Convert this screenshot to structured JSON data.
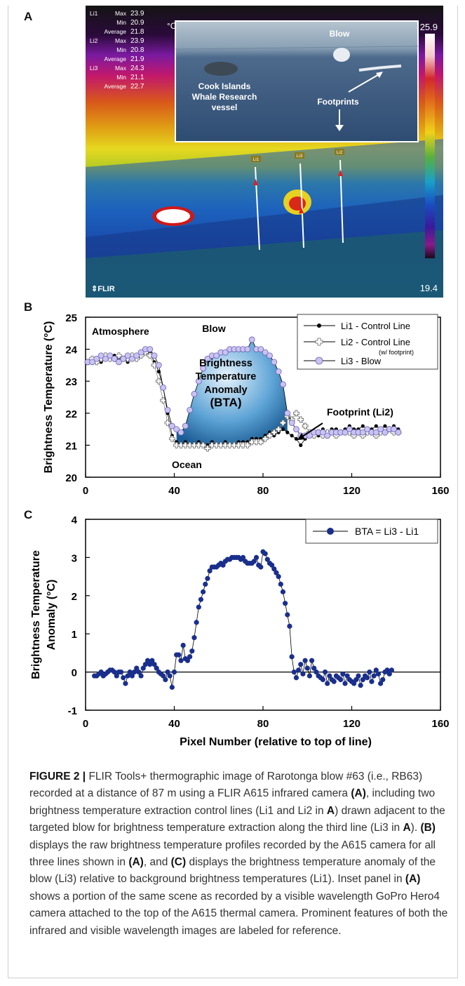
{
  "panel_a": {
    "letter": "A",
    "readouts": [
      {
        "line": "Li1",
        "max_label": "Max",
        "max": "23.9",
        "min_label": "Min",
        "min": "20.9",
        "avg_label": "Average",
        "avg": "21.8"
      },
      {
        "line": "Li2",
        "max_label": "Max",
        "max": "23.9",
        "min_label": "Min",
        "min": "20.8",
        "avg_label": "Average",
        "avg": "21.9"
      },
      {
        "line": "Li3",
        "max_label": "Max",
        "max": "24.3",
        "min_label": "Min",
        "min": "21.1",
        "avg_label": "Average",
        "avg": "22.7"
      }
    ],
    "unit": "°C",
    "scale_max": "25.9",
    "scale_min": "19.4",
    "logo": "FLIR",
    "inset": {
      "blow": "Blow",
      "vessel": [
        "Cook Islands",
        "Whale Research",
        "vessel"
      ],
      "footprints": "Footprints"
    },
    "line_tags": [
      "Li1",
      "Li3",
      "Li2"
    ],
    "colors": {
      "sky_top": "#1a1a1a",
      "warm_band": "#e8d21a",
      "water": "#1a73c9",
      "hot": "#ffffff"
    }
  },
  "chart_data": [
    {
      "type": "scatter",
      "panel": "B",
      "ylabel": "Brightness Temperature (°C)",
      "xlim": [
        0,
        160
      ],
      "ylim": [
        20,
        25
      ],
      "xticks": [
        "0",
        "40",
        "80",
        "120",
        "160"
      ],
      "yticks": [
        "20",
        "21",
        "22",
        "23",
        "24",
        "25"
      ],
      "annotations": {
        "atmosphere": "Atmosphere",
        "ocean": "Ocean",
        "blow": "Blow",
        "bta": [
          "Brightness",
          "Temperature",
          "Anomaly",
          "(BTA)"
        ],
        "footprint": "Footprint (Li2)"
      },
      "legend_placement": "top-right",
      "series": [
        {
          "name": "Li1 - Control Line",
          "marker": "filled-circle",
          "color": "#000000",
          "x": [
            1,
            3,
            5,
            7,
            9,
            11,
            13,
            15,
            17,
            19,
            21,
            23,
            25,
            27,
            29,
            31,
            33,
            35,
            37,
            39,
            41,
            43,
            45,
            47,
            49,
            51,
            53,
            55,
            57,
            59,
            61,
            63,
            65,
            67,
            69,
            71,
            73,
            75,
            77,
            79,
            81,
            83,
            85,
            87,
            89,
            91,
            93,
            95,
            97,
            99,
            101,
            103,
            105,
            107,
            109,
            111,
            113,
            115,
            117,
            119,
            121,
            123,
            125,
            127,
            129,
            131,
            133,
            135,
            137,
            139,
            141
          ],
          "y": [
            23.6,
            23.7,
            23.7,
            23.6,
            23.7,
            23.7,
            23.8,
            23.7,
            23.7,
            23.6,
            23.8,
            23.8,
            23.8,
            23.9,
            23.9,
            23.6,
            23.3,
            22.8,
            22.0,
            21.3,
            21.1,
            21.0,
            21.1,
            21.0,
            21.0,
            21.1,
            21.0,
            21.0,
            21.1,
            21.0,
            21.0,
            21.1,
            21.0,
            21.0,
            21.1,
            21.1,
            21.1,
            21.2,
            21.2,
            21.2,
            21.3,
            21.4,
            21.3,
            21.4,
            21.5,
            21.4,
            21.3,
            21.2,
            21.0,
            21.2,
            21.3,
            21.4,
            21.3,
            21.5,
            21.4,
            21.5,
            21.5,
            21.4,
            21.5,
            21.6,
            21.5,
            21.5,
            21.6,
            21.5,
            21.5,
            21.6,
            21.5,
            21.6,
            21.5,
            21.6,
            21.5
          ]
        },
        {
          "name": "Li2 - Control Line",
          "name_note": "(w/ footprint)",
          "marker": "open-cross",
          "color": "#555555",
          "x": [
            1,
            3,
            5,
            7,
            9,
            11,
            13,
            15,
            17,
            19,
            21,
            23,
            25,
            27,
            29,
            31,
            33,
            35,
            37,
            39,
            41,
            43,
            45,
            47,
            49,
            51,
            53,
            55,
            57,
            59,
            61,
            63,
            65,
            67,
            69,
            71,
            73,
            75,
            77,
            79,
            81,
            83,
            85,
            87,
            89,
            91,
            93,
            95,
            97,
            99,
            101,
            103,
            105,
            107,
            109,
            111,
            113,
            115,
            117,
            119,
            121,
            123,
            125,
            127,
            129,
            131,
            133,
            135,
            137,
            139,
            141
          ],
          "y": [
            23.6,
            23.7,
            23.6,
            23.7,
            23.8,
            23.7,
            23.7,
            23.8,
            23.7,
            23.7,
            23.8,
            23.7,
            23.8,
            23.9,
            23.8,
            23.5,
            23.0,
            22.4,
            21.7,
            21.2,
            21.0,
            21.0,
            21.0,
            21.0,
            21.0,
            21.0,
            21.0,
            20.9,
            21.0,
            21.0,
            21.0,
            21.0,
            21.0,
            21.0,
            21.0,
            21.0,
            21.0,
            21.1,
            21.1,
            21.1,
            21.2,
            21.3,
            21.4,
            21.5,
            21.7,
            21.9,
            21.8,
            22.0,
            21.8,
            21.6,
            21.4,
            21.3,
            21.4,
            21.3,
            21.4,
            21.4,
            21.3,
            21.4,
            21.4,
            21.4,
            21.3,
            21.4,
            21.3,
            21.4,
            21.4,
            21.3,
            21.4,
            21.4,
            21.5,
            21.4,
            21.4
          ]
        },
        {
          "name": "Li3 - Blow",
          "marker": "lavender-circle",
          "color": "#b9b2e6",
          "x": [
            1,
            3,
            5,
            7,
            9,
            11,
            13,
            15,
            17,
            19,
            21,
            23,
            25,
            27,
            29,
            31,
            33,
            35,
            37,
            39,
            41,
            43,
            45,
            47,
            49,
            51,
            53,
            55,
            57,
            59,
            61,
            63,
            65,
            67,
            69,
            71,
            73,
            75,
            77,
            79,
            81,
            83,
            85,
            87,
            89,
            91,
            93,
            95,
            97,
            99,
            101,
            103,
            105,
            107,
            109,
            111,
            113,
            115,
            117,
            119,
            121,
            123,
            125,
            127,
            129,
            131,
            133,
            135,
            137,
            139,
            141
          ],
          "y": [
            23.6,
            23.6,
            23.7,
            23.8,
            23.7,
            23.8,
            23.7,
            23.6,
            23.7,
            23.8,
            23.7,
            23.8,
            23.9,
            24.0,
            24.0,
            23.8,
            23.5,
            22.8,
            22.1,
            21.6,
            21.5,
            21.4,
            21.6,
            22.1,
            22.6,
            23.0,
            23.4,
            23.7,
            23.8,
            23.8,
            23.9,
            23.9,
            24.0,
            24.0,
            24.0,
            24.0,
            24.0,
            24.3,
            24.0,
            24.0,
            23.9,
            23.8,
            23.6,
            23.3,
            22.9,
            22.0,
            21.7,
            21.5,
            21.3,
            21.3,
            21.3,
            21.4,
            21.4,
            21.4,
            21.3,
            21.4,
            21.4,
            21.4,
            21.4,
            21.5,
            21.4,
            21.4,
            21.4,
            21.5,
            21.4,
            21.4,
            21.5,
            21.4,
            21.5,
            21.5,
            21.4
          ]
        }
      ]
    },
    {
      "type": "line",
      "panel": "C",
      "ylabel": "Brightness Temperature Anomaly (°C)",
      "xlabel": "Pixel Number (relative to top of line)",
      "xlim": [
        0,
        160
      ],
      "ylim": [
        -1,
        4
      ],
      "xticks": [
        "0",
        "40",
        "80",
        "120",
        "160"
      ],
      "yticks": [
        "-1",
        "0",
        "1",
        "2",
        "3",
        "4"
      ],
      "legend_placement": "top-right",
      "series": [
        {
          "name": "BTA = Li3 - Li1",
          "marker": "filled-circle",
          "color": "#1a2f8c",
          "x": [
            4,
            5,
            6,
            7,
            8,
            9,
            10,
            11,
            12,
            13,
            14,
            15,
            16,
            17,
            18,
            19,
            20,
            21,
            22,
            23,
            24,
            25,
            26,
            27,
            28,
            29,
            30,
            31,
            32,
            33,
            34,
            35,
            36,
            37,
            38,
            39,
            40,
            41,
            42,
            43,
            44,
            45,
            46,
            47,
            48,
            49,
            50,
            51,
            52,
            53,
            54,
            55,
            56,
            57,
            58,
            59,
            60,
            61,
            62,
            63,
            64,
            65,
            66,
            67,
            68,
            69,
            70,
            71,
            72,
            73,
            74,
            75,
            76,
            77,
            78,
            79,
            80,
            81,
            82,
            83,
            84,
            85,
            86,
            87,
            88,
            89,
            90,
            91,
            92,
            93,
            94,
            95,
            96,
            97,
            98,
            99,
            100,
            101,
            102,
            103,
            104,
            105,
            106,
            107,
            108,
            109,
            110,
            111,
            112,
            113,
            114,
            115,
            116,
            117,
            118,
            119,
            120,
            121,
            122,
            123,
            124,
            125,
            126,
            127,
            128,
            129,
            130,
            131,
            132,
            133,
            134,
            135,
            136,
            137,
            138
          ],
          "y": [
            -0.1,
            -0.1,
            -0.05,
            0.0,
            -0.1,
            -0.05,
            0.0,
            0.05,
            0.05,
            0.0,
            -0.1,
            0.0,
            0.0,
            -0.15,
            -0.3,
            -0.1,
            0.0,
            -0.1,
            0.0,
            0.1,
            0.0,
            -0.1,
            0.1,
            0.2,
            0.3,
            0.2,
            0.3,
            0.2,
            0.1,
            0.0,
            -0.05,
            -0.1,
            -0.2,
            0.0,
            -0.1,
            -0.4,
            0.0,
            0.45,
            0.45,
            0.3,
            0.7,
            0.35,
            0.3,
            0.4,
            0.55,
            0.9,
            1.3,
            1.7,
            1.9,
            2.1,
            2.3,
            2.45,
            2.65,
            2.75,
            2.75,
            2.75,
            2.8,
            2.85,
            2.8,
            2.9,
            2.95,
            2.95,
            3.0,
            3.0,
            3.0,
            3.0,
            2.95,
            3.0,
            2.9,
            2.85,
            2.85,
            2.85,
            2.9,
            3.0,
            2.8,
            2.75,
            3.15,
            3.1,
            2.95,
            2.85,
            2.8,
            2.7,
            2.6,
            2.5,
            2.3,
            2.1,
            1.8,
            1.5,
            1.2,
            0.4,
            0.0,
            -0.15,
            0.05,
            0.2,
            -0.05,
            0.3,
            0.1,
            -0.1,
            0.3,
            0.1,
            0.0,
            -0.1,
            -0.15,
            -0.2,
            0.0,
            -0.3,
            -0.1,
            -0.2,
            -0.25,
            -0.1,
            -0.15,
            -0.2,
            -0.05,
            -0.3,
            -0.1,
            -0.2,
            -0.25,
            -0.3,
            -0.2,
            -0.1,
            -0.35,
            -0.2,
            -0.1,
            -0.15,
            0.0,
            -0.25,
            -0.1,
            0.05,
            -0.05,
            -0.3,
            -0.2,
            0.0,
            0.05,
            -0.05,
            0.05
          ]
        }
      ]
    }
  ],
  "caption": {
    "label": "FIGURE 2 |",
    "text": " FLIR Tools+ thermographic image of Rarotonga blow #63 (i.e., RB63) recorded at a distance of 87 m using a FLIR A615 infrared camera ",
    "ref_a1": "(A)",
    "text2": ", including two brightness temperature extraction control lines (Li1 and Li2 in ",
    "ref_a2": "A",
    "text3": ") drawn adjacent to the targeted blow for brightness temperature extraction along the third line (Li3 in ",
    "ref_a3": "A",
    "text4": "). ",
    "ref_b": "(B)",
    "text5": " displays the raw brightness temperature profiles recorded by the A615 camera for all three lines shown in ",
    "ref_a4": "(A)",
    "text6": ", and ",
    "ref_c": "(C)",
    "text7": " displays the brightness temperature anomaly of the blow (Li3) relative to background brightness temperatures (Li1). Inset panel in ",
    "ref_a5": "(A)",
    "text8": " shows a portion of the same scene as recorded by a visible wavelength GoPro Hero4 camera attached to the top of the A615 thermal camera. Prominent features of both the infrared and visible wavelength images are labeled for reference."
  }
}
